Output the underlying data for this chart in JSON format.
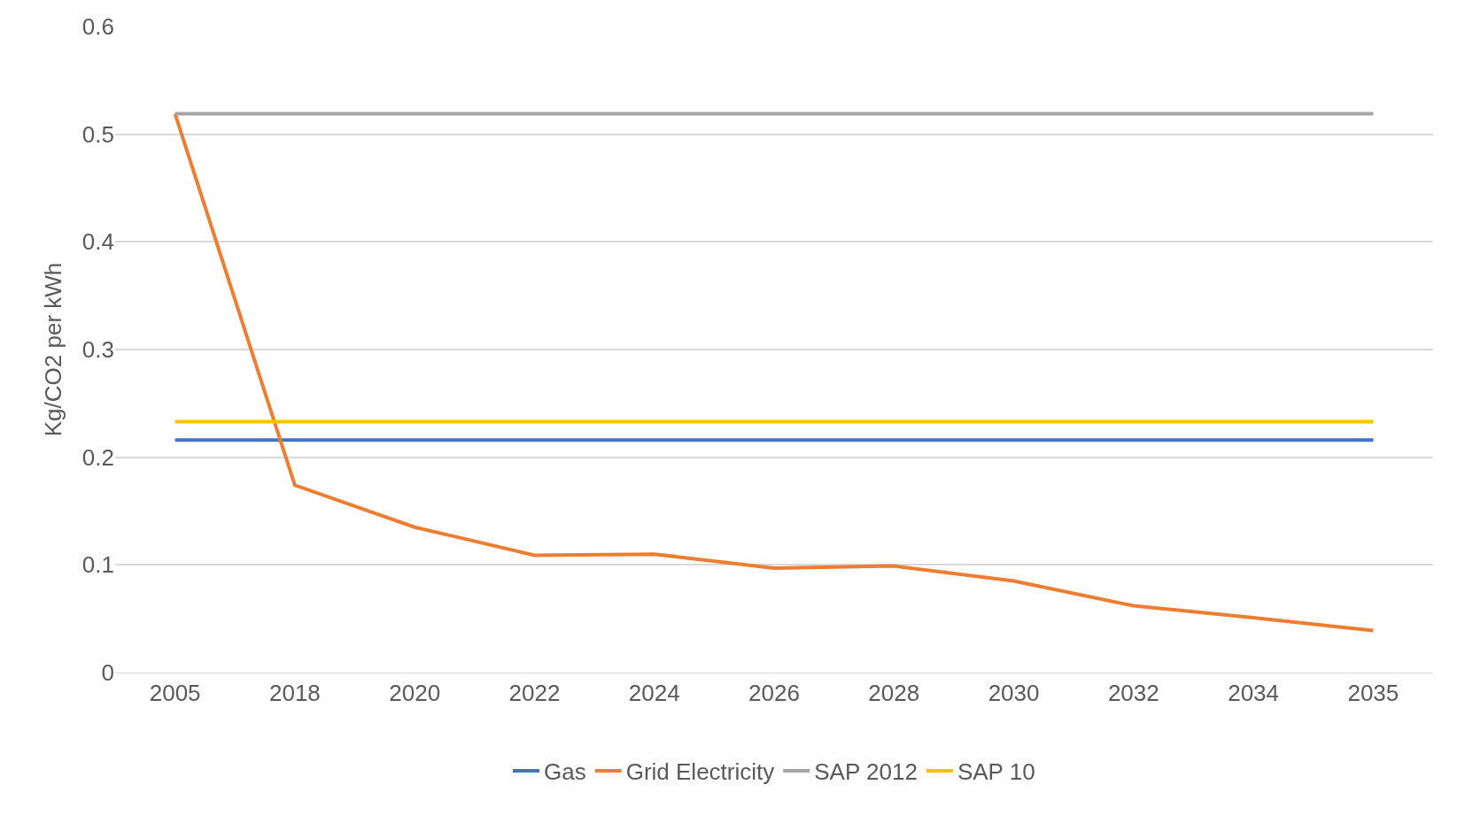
{
  "chart_data": {
    "type": "line",
    "ylabel": "Kg/CO2 per kWh",
    "categories": [
      "2005",
      "2018",
      "2020",
      "2022",
      "2024",
      "2026",
      "2028",
      "2030",
      "2032",
      "2034",
      "2035"
    ],
    "series": [
      {
        "name": "Gas",
        "color": "#4472c4",
        "values": [
          0.216,
          0.216,
          0.216,
          0.216,
          0.216,
          0.216,
          0.216,
          0.216,
          0.216,
          0.216,
          0.216
        ]
      },
      {
        "name": "Grid Electricity",
        "color": "#ed7d31",
        "values": [
          0.519,
          0.174,
          0.135,
          0.109,
          0.11,
          0.097,
          0.099,
          0.085,
          0.062,
          0.051,
          0.039
        ]
      },
      {
        "name": "SAP 2012",
        "color": "#a5a5a5",
        "values": [
          0.519,
          0.519,
          0.519,
          0.519,
          0.519,
          0.519,
          0.519,
          0.519,
          0.519,
          0.519,
          0.519
        ]
      },
      {
        "name": "SAP 10",
        "color": "#ffc000",
        "values": [
          0.233,
          0.233,
          0.233,
          0.233,
          0.233,
          0.233,
          0.233,
          0.233,
          0.233,
          0.233,
          0.233
        ]
      }
    ],
    "ylim": [
      0,
      0.6
    ],
    "yticks": [
      0,
      0.1,
      0.2,
      0.3,
      0.4,
      0.5,
      0.6
    ],
    "grid": "y",
    "legend": "bottom",
    "marker": "none",
    "line_style": "solid"
  }
}
